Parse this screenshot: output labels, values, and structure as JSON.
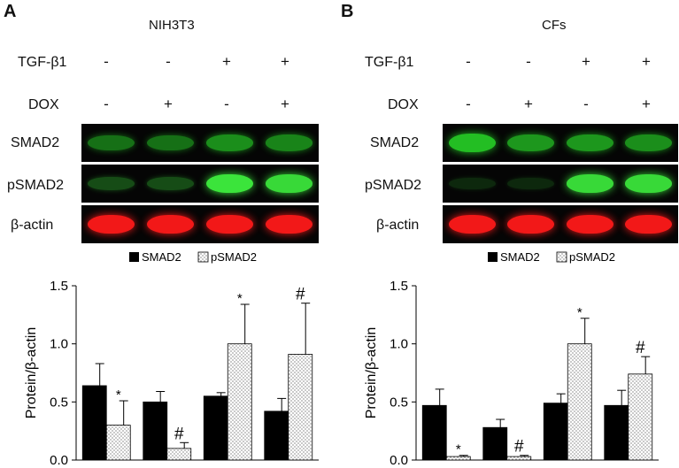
{
  "figure": {
    "panels": [
      {
        "letter": "A",
        "cell_line": "NIH3T3",
        "treatments": [
          {
            "label": "TGF-β1",
            "signs": [
              "-",
              "-",
              "+",
              "+"
            ]
          },
          {
            "label": "DOX",
            "signs": [
              "-",
              "+",
              "-",
              "+"
            ]
          }
        ],
        "blots": [
          {
            "label": "SMAD2",
            "color": "#25c825",
            "intensity": [
              0.55,
              0.55,
              0.7,
              0.65
            ]
          },
          {
            "label": "pSMAD2",
            "color": "#3ef03e",
            "intensity": [
              0.3,
              0.3,
              0.95,
              0.9
            ]
          },
          {
            "label": "β-actin",
            "color": "#ff1a1a",
            "intensity": [
              0.95,
              0.95,
              0.95,
              0.95
            ]
          }
        ],
        "legend": {
          "smad2": "SMAD2",
          "psmad2": "pSMAD2"
        }
      },
      {
        "letter": "B",
        "cell_line": "CFs",
        "treatments": [
          {
            "label": "TGF-β1",
            "signs": [
              "-",
              "-",
              "+",
              "+"
            ]
          },
          {
            "label": "DOX",
            "signs": [
              "-",
              "+",
              "-",
              "+"
            ]
          }
        ],
        "blots": [
          {
            "label": "SMAD2",
            "color": "#25c825",
            "intensity": [
              0.95,
              0.75,
              0.75,
              0.7
            ]
          },
          {
            "label": "pSMAD2",
            "color": "#3ef03e",
            "intensity": [
              0.12,
              0.12,
              0.9,
              0.9
            ]
          },
          {
            "label": "β-actin",
            "color": "#ff1a1a",
            "intensity": [
              0.95,
              0.95,
              0.95,
              0.95
            ]
          }
        ],
        "legend": {
          "smad2": "SMAD2",
          "psmad2": "pSMAD2"
        }
      }
    ]
  },
  "chart_data": [
    {
      "type": "bar",
      "panel": "A",
      "ylabel": "Protein/β-actin",
      "ylim": [
        0,
        1.5
      ],
      "yticks": [
        "0.0",
        "0.5",
        "1.0",
        "1.5"
      ],
      "groups": 4,
      "series": [
        {
          "name": "SMAD2",
          "fill": "#000000",
          "values": [
            0.64,
            0.5,
            0.55,
            0.42
          ],
          "errors": [
            0.19,
            0.09,
            0.03,
            0.11
          ],
          "marks": [
            "",
            "",
            "",
            ""
          ]
        },
        {
          "name": "pSMAD2",
          "fill": "dotted",
          "values": [
            0.3,
            0.1,
            1.0,
            0.91
          ],
          "errors": [
            0.21,
            0.05,
            0.34,
            0.44
          ],
          "marks": [
            "*",
            "#",
            "*",
            "#"
          ]
        }
      ]
    },
    {
      "type": "bar",
      "panel": "B",
      "ylabel": "Protein/β-actin",
      "ylim": [
        0,
        1.5
      ],
      "yticks": [
        "0.0",
        "0.5",
        "1.0",
        "1.5"
      ],
      "groups": 4,
      "series": [
        {
          "name": "SMAD2",
          "fill": "#000000",
          "values": [
            0.47,
            0.28,
            0.49,
            0.47
          ],
          "errors": [
            0.14,
            0.07,
            0.08,
            0.13
          ],
          "marks": [
            "",
            "",
            "",
            ""
          ]
        },
        {
          "name": "pSMAD2",
          "fill": "dotted",
          "values": [
            0.03,
            0.03,
            1.0,
            0.74
          ],
          "errors": [
            0.01,
            0.01,
            0.22,
            0.15
          ],
          "marks": [
            "*",
            "#",
            "*",
            "#"
          ]
        }
      ]
    }
  ]
}
